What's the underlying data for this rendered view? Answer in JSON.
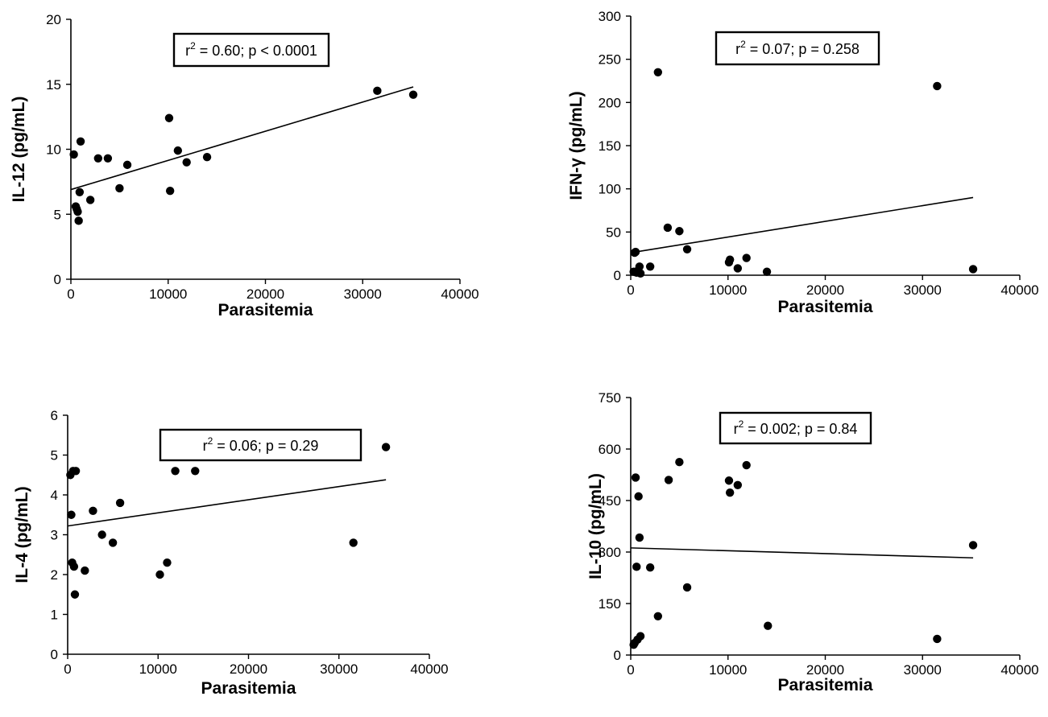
{
  "chart_data": [
    {
      "type": "scatter",
      "xlabel": "Parasitemia",
      "ylabel": "IL-12 (pg/mL)",
      "xlim": [
        0,
        40000
      ],
      "ylim": [
        0,
        20
      ],
      "x_ticks": [
        "0",
        "10000",
        "20000",
        "30000",
        "40000"
      ],
      "y_ticks": [
        "0",
        "5",
        "10",
        "15",
        "20"
      ],
      "annotation": {
        "prefix": "r",
        "sup": "2",
        "rest": " = 0.60; p  < 0.0001"
      },
      "fit": {
        "x": [
          0,
          35200
        ],
        "y": [
          6.9,
          14.8
        ]
      },
      "points": [
        {
          "x": 300,
          "y": 9.6
        },
        {
          "x": 500,
          "y": 5.6
        },
        {
          "x": 600,
          "y": 5.4
        },
        {
          "x": 700,
          "y": 5.2
        },
        {
          "x": 800,
          "y": 4.5
        },
        {
          "x": 900,
          "y": 6.7
        },
        {
          "x": 1000,
          "y": 10.6
        },
        {
          "x": 2000,
          "y": 6.1
        },
        {
          "x": 2800,
          "y": 9.3
        },
        {
          "x": 3800,
          "y": 9.3
        },
        {
          "x": 5000,
          "y": 7.0
        },
        {
          "x": 5800,
          "y": 8.8
        },
        {
          "x": 10100,
          "y": 12.4
        },
        {
          "x": 10200,
          "y": 6.8
        },
        {
          "x": 11000,
          "y": 9.9
        },
        {
          "x": 11900,
          "y": 9.0
        },
        {
          "x": 14000,
          "y": 9.4
        },
        {
          "x": 31500,
          "y": 14.5
        },
        {
          "x": 35200,
          "y": 14.2
        }
      ]
    },
    {
      "type": "scatter",
      "xlabel": "Parasitemia",
      "ylabel": "IFN-γ (pg/mL)",
      "xlim": [
        0,
        40000
      ],
      "ylim": [
        0,
        300
      ],
      "x_ticks": [
        "0",
        "10000",
        "20000",
        "30000",
        "40000"
      ],
      "y_ticks": [
        "0",
        "50",
        "100",
        "150",
        "200",
        "250",
        "300"
      ],
      "annotation": {
        "prefix": "r",
        "sup": "2",
        "rest": " = 0.07; p = 0.258"
      },
      "fit": {
        "x": [
          0,
          35200
        ],
        "y": [
          26,
          90
        ]
      },
      "points": [
        {
          "x": 300,
          "y": 4
        },
        {
          "x": 400,
          "y": 26
        },
        {
          "x": 500,
          "y": 27
        },
        {
          "x": 600,
          "y": 3
        },
        {
          "x": 700,
          "y": 5
        },
        {
          "x": 900,
          "y": 10
        },
        {
          "x": 1000,
          "y": 2
        },
        {
          "x": 2000,
          "y": 10
        },
        {
          "x": 2800,
          "y": 235
        },
        {
          "x": 3800,
          "y": 55
        },
        {
          "x": 5000,
          "y": 51
        },
        {
          "x": 5800,
          "y": 30
        },
        {
          "x": 10100,
          "y": 15
        },
        {
          "x": 10200,
          "y": 18
        },
        {
          "x": 11000,
          "y": 8
        },
        {
          "x": 11900,
          "y": 20
        },
        {
          "x": 14000,
          "y": 4
        },
        {
          "x": 31500,
          "y": 219
        },
        {
          "x": 35200,
          "y": 7
        }
      ]
    },
    {
      "type": "scatter",
      "xlabel": "Parasitemia",
      "ylabel": "IL-4 (pg/mL)",
      "xlim": [
        0,
        40000
      ],
      "ylim": [
        0,
        6
      ],
      "x_ticks": [
        "0",
        "10000",
        "20000",
        "30000",
        "40000"
      ],
      "y_ticks": [
        "0",
        "1",
        "2",
        "3",
        "4",
        "5",
        "6"
      ],
      "annotation": {
        "prefix": "r",
        "sup": "2",
        "rest": " = 0.06; p  = 0.29"
      },
      "fit": {
        "x": [
          0,
          35200
        ],
        "y": [
          3.22,
          4.38
        ]
      },
      "points": [
        {
          "x": 300,
          "y": 4.5
        },
        {
          "x": 400,
          "y": 3.5
        },
        {
          "x": 500,
          "y": 2.3
        },
        {
          "x": 600,
          "y": 4.6
        },
        {
          "x": 700,
          "y": 2.2
        },
        {
          "x": 800,
          "y": 1.5
        },
        {
          "x": 900,
          "y": 4.6
        },
        {
          "x": 1900,
          "y": 2.1
        },
        {
          "x": 2800,
          "y": 3.6
        },
        {
          "x": 3800,
          "y": 3.0
        },
        {
          "x": 5000,
          "y": 2.8
        },
        {
          "x": 5800,
          "y": 3.8
        },
        {
          "x": 10200,
          "y": 2.0
        },
        {
          "x": 11000,
          "y": 2.3
        },
        {
          "x": 11900,
          "y": 4.6
        },
        {
          "x": 14100,
          "y": 4.6
        },
        {
          "x": 31600,
          "y": 2.8
        },
        {
          "x": 35200,
          "y": 5.2
        }
      ]
    },
    {
      "type": "scatter",
      "xlabel": "Parasitemia",
      "ylabel": "IL-10 (pg/mL)",
      "xlim": [
        0,
        40000
      ],
      "ylim": [
        0,
        750
      ],
      "x_ticks": [
        "0",
        "10000",
        "20000",
        "30000",
        "40000"
      ],
      "y_ticks": [
        "0",
        "150",
        "300",
        "450",
        "600",
        "750"
      ],
      "annotation": {
        "prefix": "r",
        "sup": "2",
        "rest": " = 0.002; p = 0.84"
      },
      "fit": {
        "x": [
          0,
          35200
        ],
        "y": [
          312,
          283
        ]
      },
      "points": [
        {
          "x": 300,
          "y": 30
        },
        {
          "x": 400,
          "y": 35
        },
        {
          "x": 500,
          "y": 517
        },
        {
          "x": 600,
          "y": 257
        },
        {
          "x": 700,
          "y": 45
        },
        {
          "x": 800,
          "y": 462
        },
        {
          "x": 900,
          "y": 342
        },
        {
          "x": 1000,
          "y": 55
        },
        {
          "x": 2000,
          "y": 255
        },
        {
          "x": 2800,
          "y": 113
        },
        {
          "x": 3900,
          "y": 510
        },
        {
          "x": 5000,
          "y": 562
        },
        {
          "x": 5800,
          "y": 197
        },
        {
          "x": 10100,
          "y": 508
        },
        {
          "x": 10200,
          "y": 473
        },
        {
          "x": 11000,
          "y": 495
        },
        {
          "x": 11900,
          "y": 553
        },
        {
          "x": 14100,
          "y": 85
        },
        {
          "x": 31500,
          "y": 47
        },
        {
          "x": 35200,
          "y": 320
        }
      ]
    }
  ]
}
